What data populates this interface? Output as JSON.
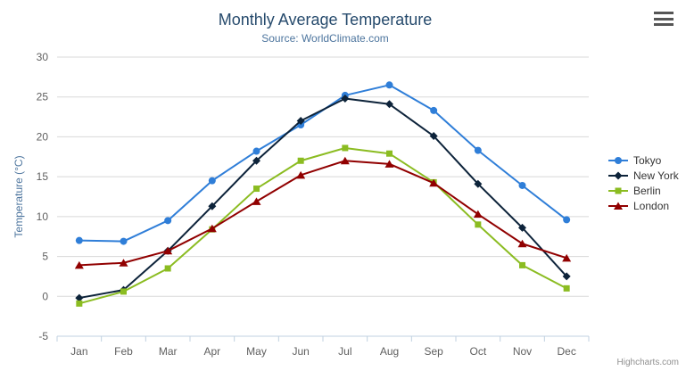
{
  "chart_data": {
    "type": "line",
    "title": "Monthly Average Temperature",
    "subtitle": "Source: WorldClimate.com",
    "categories": [
      "Jan",
      "Feb",
      "Mar",
      "Apr",
      "May",
      "Jun",
      "Jul",
      "Aug",
      "Sep",
      "Oct",
      "Nov",
      "Dec"
    ],
    "series": [
      {
        "name": "Tokyo",
        "color": "#2f7ed8",
        "marker": "circle",
        "values": [
          7.0,
          6.9,
          9.5,
          14.5,
          18.2,
          21.5,
          25.2,
          26.5,
          23.3,
          18.3,
          13.9,
          9.6
        ]
      },
      {
        "name": "New York",
        "color": "#0d233a",
        "marker": "diamond",
        "values": [
          -0.2,
          0.8,
          5.7,
          11.3,
          17.0,
          22.0,
          24.8,
          24.1,
          20.1,
          14.1,
          8.6,
          2.5
        ]
      },
      {
        "name": "Berlin",
        "color": "#8bbc21",
        "marker": "square",
        "values": [
          -0.9,
          0.6,
          3.5,
          8.4,
          13.5,
          17.0,
          18.6,
          17.9,
          14.3,
          9.0,
          3.9,
          1.0
        ]
      },
      {
        "name": "London",
        "color": "#910000",
        "marker": "triangle",
        "values": [
          3.9,
          4.2,
          5.7,
          8.5,
          11.9,
          15.2,
          17.0,
          16.6,
          14.2,
          10.3,
          6.6,
          4.8
        ]
      }
    ],
    "xlabel": "",
    "ylabel": "Temperature (°C)",
    "ylim": [
      -5,
      30
    ],
    "ytick_interval": 5,
    "grid": true,
    "legend_position": "right",
    "colors": {
      "title": "#274b6d",
      "subtitle": "#4d759e",
      "axis_title": "#4d759e",
      "tick_label": "#606060",
      "gridline": "#d8d8d8",
      "axis_line": "#c0d0e0",
      "legend_text": "#333333"
    }
  },
  "ui": {
    "credits": "Highcharts.com",
    "export_menu_icon": "hamburger-icon"
  }
}
